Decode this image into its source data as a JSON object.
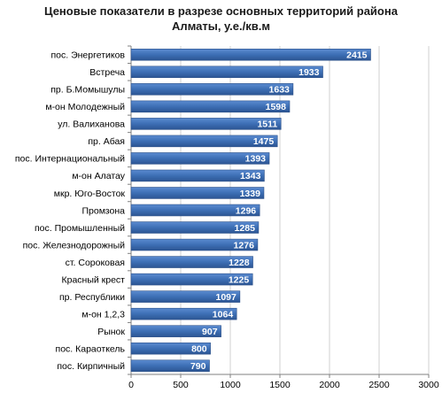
{
  "chart_data": {
    "type": "bar",
    "orientation": "horizontal",
    "title": "Ценовые показатели в разрезе основных территорий района\nАлматы, у.е./кв.м",
    "categories": [
      "пос. Энергетиков",
      "Встреча",
      "пр. Б.Момышулы",
      "м-он Молодежный",
      "ул. Валиханова",
      "пр. Абая",
      "пос. Интернациональный",
      "м-он Алатау",
      "мкр. Юго-Восток",
      "Промзона",
      "пос. Промышленный",
      "пос. Железнодорожный",
      "ст. Сороковая",
      "Красный крест",
      "пр. Республики",
      "м-он 1,2,3",
      "Рынок",
      "пос. Караоткель",
      "пос. Кирпичный"
    ],
    "values": [
      2415,
      1933,
      1633,
      1598,
      1511,
      1475,
      1393,
      1343,
      1339,
      1296,
      1285,
      1276,
      1228,
      1225,
      1097,
      1064,
      907,
      800,
      790
    ],
    "xlim": [
      0,
      3000
    ],
    "xticks": [
      "0",
      "500",
      "1000",
      "1500",
      "2000",
      "2500",
      "3000"
    ],
    "grid": true,
    "bar_color": "#3d6fb5",
    "value_label_color": "#ffffff"
  }
}
